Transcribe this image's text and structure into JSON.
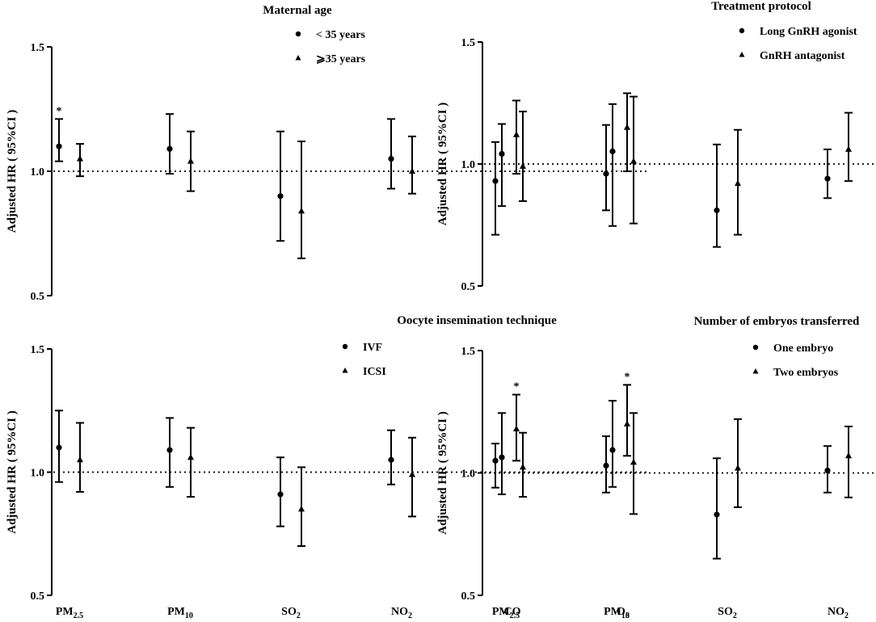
{
  "chart_data": [
    {
      "type": "scatter",
      "chart_style": "error-bar forest plot",
      "title": "Maternal age",
      "ylabel": "Adjusted HR ( 95%CI )",
      "xlabel": "",
      "ylim": [
        0.5,
        1.5
      ],
      "yticks": [
        "0.5",
        "1.0",
        "1.5"
      ],
      "reference_line": 1.0,
      "legend_position": "top-right",
      "categories": [
        {
          "base": "PM",
          "sub": "2.5"
        },
        {
          "base": "PM",
          "sub": "10"
        },
        {
          "base": "SO",
          "sub": "2"
        },
        {
          "base": "NO",
          "sub": "2"
        },
        {
          "base": "CO",
          "sub": ""
        },
        {
          "base": "O",
          "sub": "3"
        }
      ],
      "series": [
        {
          "name": "< 35 years",
          "marker": "circle",
          "values": [
            1.1,
            1.09,
            0.9,
            1.05,
            1.07,
            1.08
          ],
          "lower": [
            1.04,
            0.99,
            0.72,
            0.93,
            0.86,
            0.78
          ],
          "upper": [
            1.21,
            1.23,
            1.16,
            1.21,
            1.19,
            1.27
          ],
          "significant": [
            true,
            false,
            false,
            false,
            false,
            false
          ]
        },
        {
          "name": "⩾35 years",
          "marker": "triangle",
          "values": [
            1.05,
            1.04,
            0.84,
            1.0,
            1.02,
            1.04
          ],
          "lower": [
            0.98,
            0.92,
            0.65,
            0.91,
            0.88,
            0.79
          ],
          "upper": [
            1.11,
            1.16,
            1.12,
            1.14,
            1.24,
            1.3
          ],
          "significant": [
            false,
            false,
            false,
            false,
            false,
            false
          ]
        }
      ]
    },
    {
      "type": "scatter",
      "chart_style": "error-bar forest plot",
      "title": "Treatment protocol",
      "ylabel": "Adjusted HR ( 95%CI )",
      "xlabel": "",
      "ylim": [
        0.5,
        1.5
      ],
      "yticks": [
        "0.5",
        "1.0",
        "1.5"
      ],
      "reference_line": 1.0,
      "legend_position": "top-right",
      "categories": [
        {
          "base": "PM",
          "sub": "2.5"
        },
        {
          "base": "PM",
          "sub": "10"
        },
        {
          "base": "SO",
          "sub": "2"
        },
        {
          "base": "NO",
          "sub": "2"
        },
        {
          "base": "CO",
          "sub": ""
        },
        {
          "base": "O",
          "sub": "3"
        }
      ],
      "series": [
        {
          "name": "Long GnRH agonist",
          "marker": "circle",
          "values": [
            0.93,
            0.96,
            0.81,
            0.94,
            1.0,
            1.04
          ],
          "lower": [
            0.71,
            0.81,
            0.66,
            0.86,
            0.85,
            0.82
          ],
          "upper": [
            1.09,
            1.16,
            1.08,
            1.06,
            1.19,
            1.26
          ],
          "significant": [
            false,
            false,
            false,
            false,
            false,
            false
          ]
        },
        {
          "name": "GnRH antagonist",
          "marker": "triangle",
          "values": [
            1.12,
            1.15,
            0.92,
            1.06,
            1.04,
            1.08
          ],
          "lower": [
            0.96,
            0.97,
            0.71,
            0.93,
            0.91,
            0.89
          ],
          "upper": [
            1.26,
            1.29,
            1.14,
            1.21,
            1.25,
            1.3
          ],
          "significant": [
            false,
            false,
            false,
            false,
            false,
            false
          ]
        }
      ]
    },
    {
      "type": "scatter",
      "chart_style": "error-bar forest plot",
      "title": "Oocyte insemination technique",
      "ylabel": "Adjusted HR ( 95%CI )",
      "xlabel": "",
      "ylim": [
        0.5,
        1.5
      ],
      "yticks": [
        "0.5",
        "1.0",
        "1.5"
      ],
      "reference_line": 1.0,
      "legend_position": "top-right",
      "categories": [
        {
          "base": "PM",
          "sub": "2.5"
        },
        {
          "base": "PM",
          "sub": "10"
        },
        {
          "base": "SO",
          "sub": "2"
        },
        {
          "base": "NO",
          "sub": "2"
        },
        {
          "base": "CO",
          "sub": ""
        },
        {
          "base": "O",
          "sub": "3"
        }
      ],
      "series": [
        {
          "name": "IVF",
          "marker": "circle",
          "values": [
            1.1,
            1.09,
            0.91,
            1.05,
            1.06,
            1.09
          ],
          "lower": [
            0.96,
            0.94,
            0.78,
            0.95,
            0.91,
            0.94
          ],
          "upper": [
            1.25,
            1.22,
            1.06,
            1.17,
            1.24,
            1.29
          ],
          "significant": [
            false,
            false,
            false,
            false,
            false,
            false
          ]
        },
        {
          "name": "ICSI",
          "marker": "triangle",
          "values": [
            1.05,
            1.06,
            0.85,
            0.99,
            1.02,
            1.04
          ],
          "lower": [
            0.92,
            0.9,
            0.7,
            0.82,
            0.9,
            0.83
          ],
          "upper": [
            1.2,
            1.18,
            1.02,
            1.14,
            1.16,
            1.24
          ],
          "significant": [
            false,
            false,
            false,
            false,
            false,
            false
          ]
        }
      ]
    },
    {
      "type": "scatter",
      "chart_style": "error-bar forest plot",
      "title": "Number of embryos transferred",
      "ylabel": "Adjusted HR ( 95%CI )",
      "xlabel": "",
      "ylim": [
        0.5,
        1.5
      ],
      "yticks": [
        "0.5",
        "1.0",
        "1.5"
      ],
      "reference_line": 1.0,
      "legend_position": "top-right",
      "categories": [
        {
          "base": "PM",
          "sub": "2.5"
        },
        {
          "base": "PM",
          "sub": "10"
        },
        {
          "base": "SO",
          "sub": "2"
        },
        {
          "base": "NO",
          "sub": "2"
        },
        {
          "base": "CO",
          "sub": ""
        },
        {
          "base": "O",
          "sub": "3"
        }
      ],
      "series": [
        {
          "name": "One embryo",
          "marker": "circle",
          "values": [
            1.05,
            1.03,
            0.83,
            1.01,
            1.02,
            1.04
          ],
          "lower": [
            0.94,
            0.92,
            0.65,
            0.92,
            0.9,
            0.89
          ],
          "upper": [
            1.12,
            1.15,
            1.06,
            1.11,
            1.13,
            1.2
          ],
          "significant": [
            false,
            false,
            false,
            false,
            false,
            false
          ]
        },
        {
          "name": "Two embryos",
          "marker": "triangle",
          "values": [
            1.18,
            1.2,
            1.02,
            1.07,
            1.06,
            1.12
          ],
          "lower": [
            1.05,
            1.07,
            0.86,
            0.9,
            0.94,
            0.92
          ],
          "upper": [
            1.32,
            1.36,
            1.22,
            1.19,
            1.15,
            1.25
          ],
          "significant": [
            true,
            true,
            false,
            false,
            false,
            false
          ]
        }
      ]
    }
  ],
  "significance_marker": "*"
}
